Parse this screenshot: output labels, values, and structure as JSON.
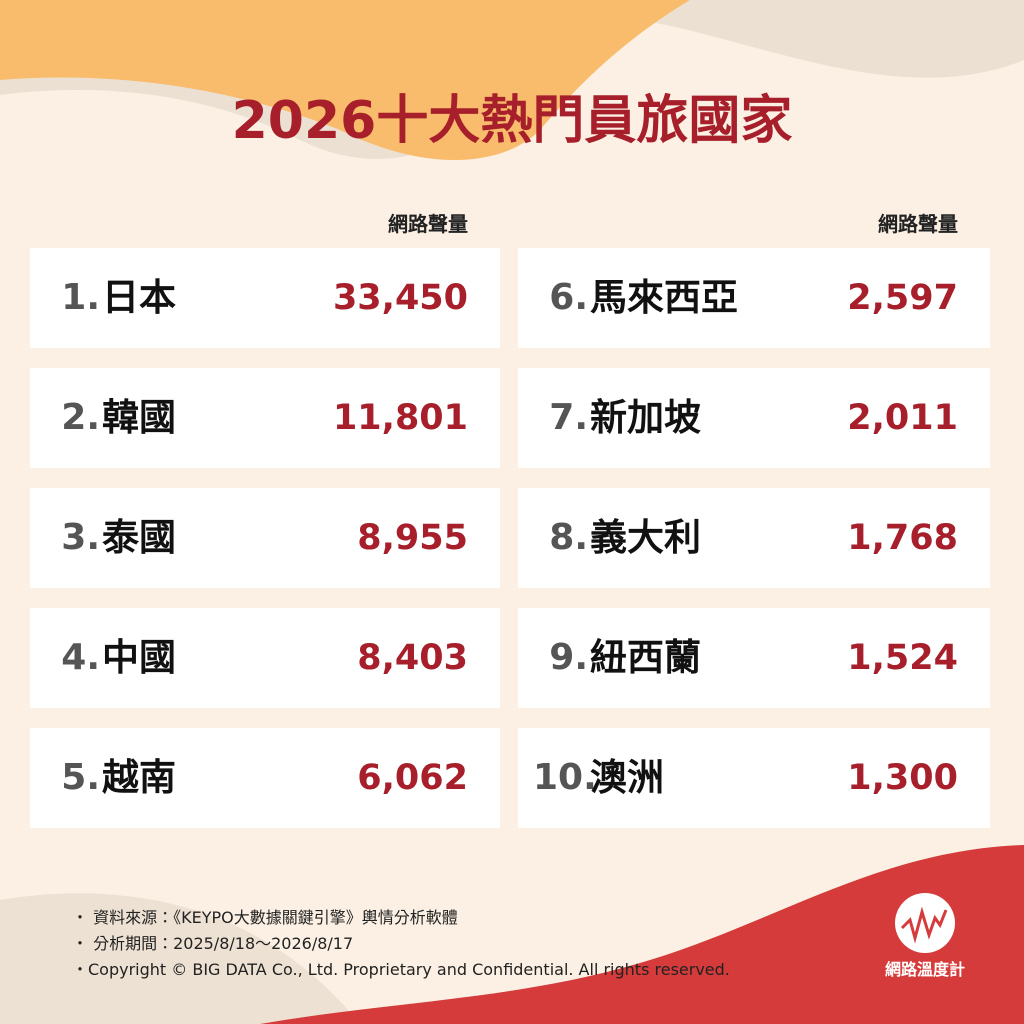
{
  "header": {
    "title": "2026十大熱門員旅國家"
  },
  "columns": [
    {
      "header": "網路聲量",
      "rows": [
        {
          "rank": "1.",
          "name": "日本",
          "value": "33,450"
        },
        {
          "rank": "2.",
          "name": "韓國",
          "value": "11,801"
        },
        {
          "rank": "3.",
          "name": "泰國",
          "value": "8,955"
        },
        {
          "rank": "4.",
          "name": "中國",
          "value": "8,403"
        },
        {
          "rank": "5.",
          "name": "越南",
          "value": "6,062"
        }
      ]
    },
    {
      "header": "網路聲量",
      "rows": [
        {
          "rank": "6.",
          "name": "馬來西亞",
          "value": "2,597"
        },
        {
          "rank": "7.",
          "name": "新加坡",
          "value": "2,011"
        },
        {
          "rank": "8.",
          "name": "義大利",
          "value": "1,768"
        },
        {
          "rank": "9.",
          "name": "紐西蘭",
          "value": "1,524"
        },
        {
          "rank": "10.",
          "name": "澳洲",
          "value": "1,300"
        }
      ]
    }
  ],
  "footer": {
    "notes": [
      "・ 資料來源：《KEYPO大數據關鍵引擎》輿情分析軟體",
      "・ 分析期間：2025/8/18～2026/8/17",
      "・Copyright © BIG DATA Co., Ltd. Proprietary and Confidential. All rights reserved."
    ],
    "logo": "網路溫度計"
  }
}
